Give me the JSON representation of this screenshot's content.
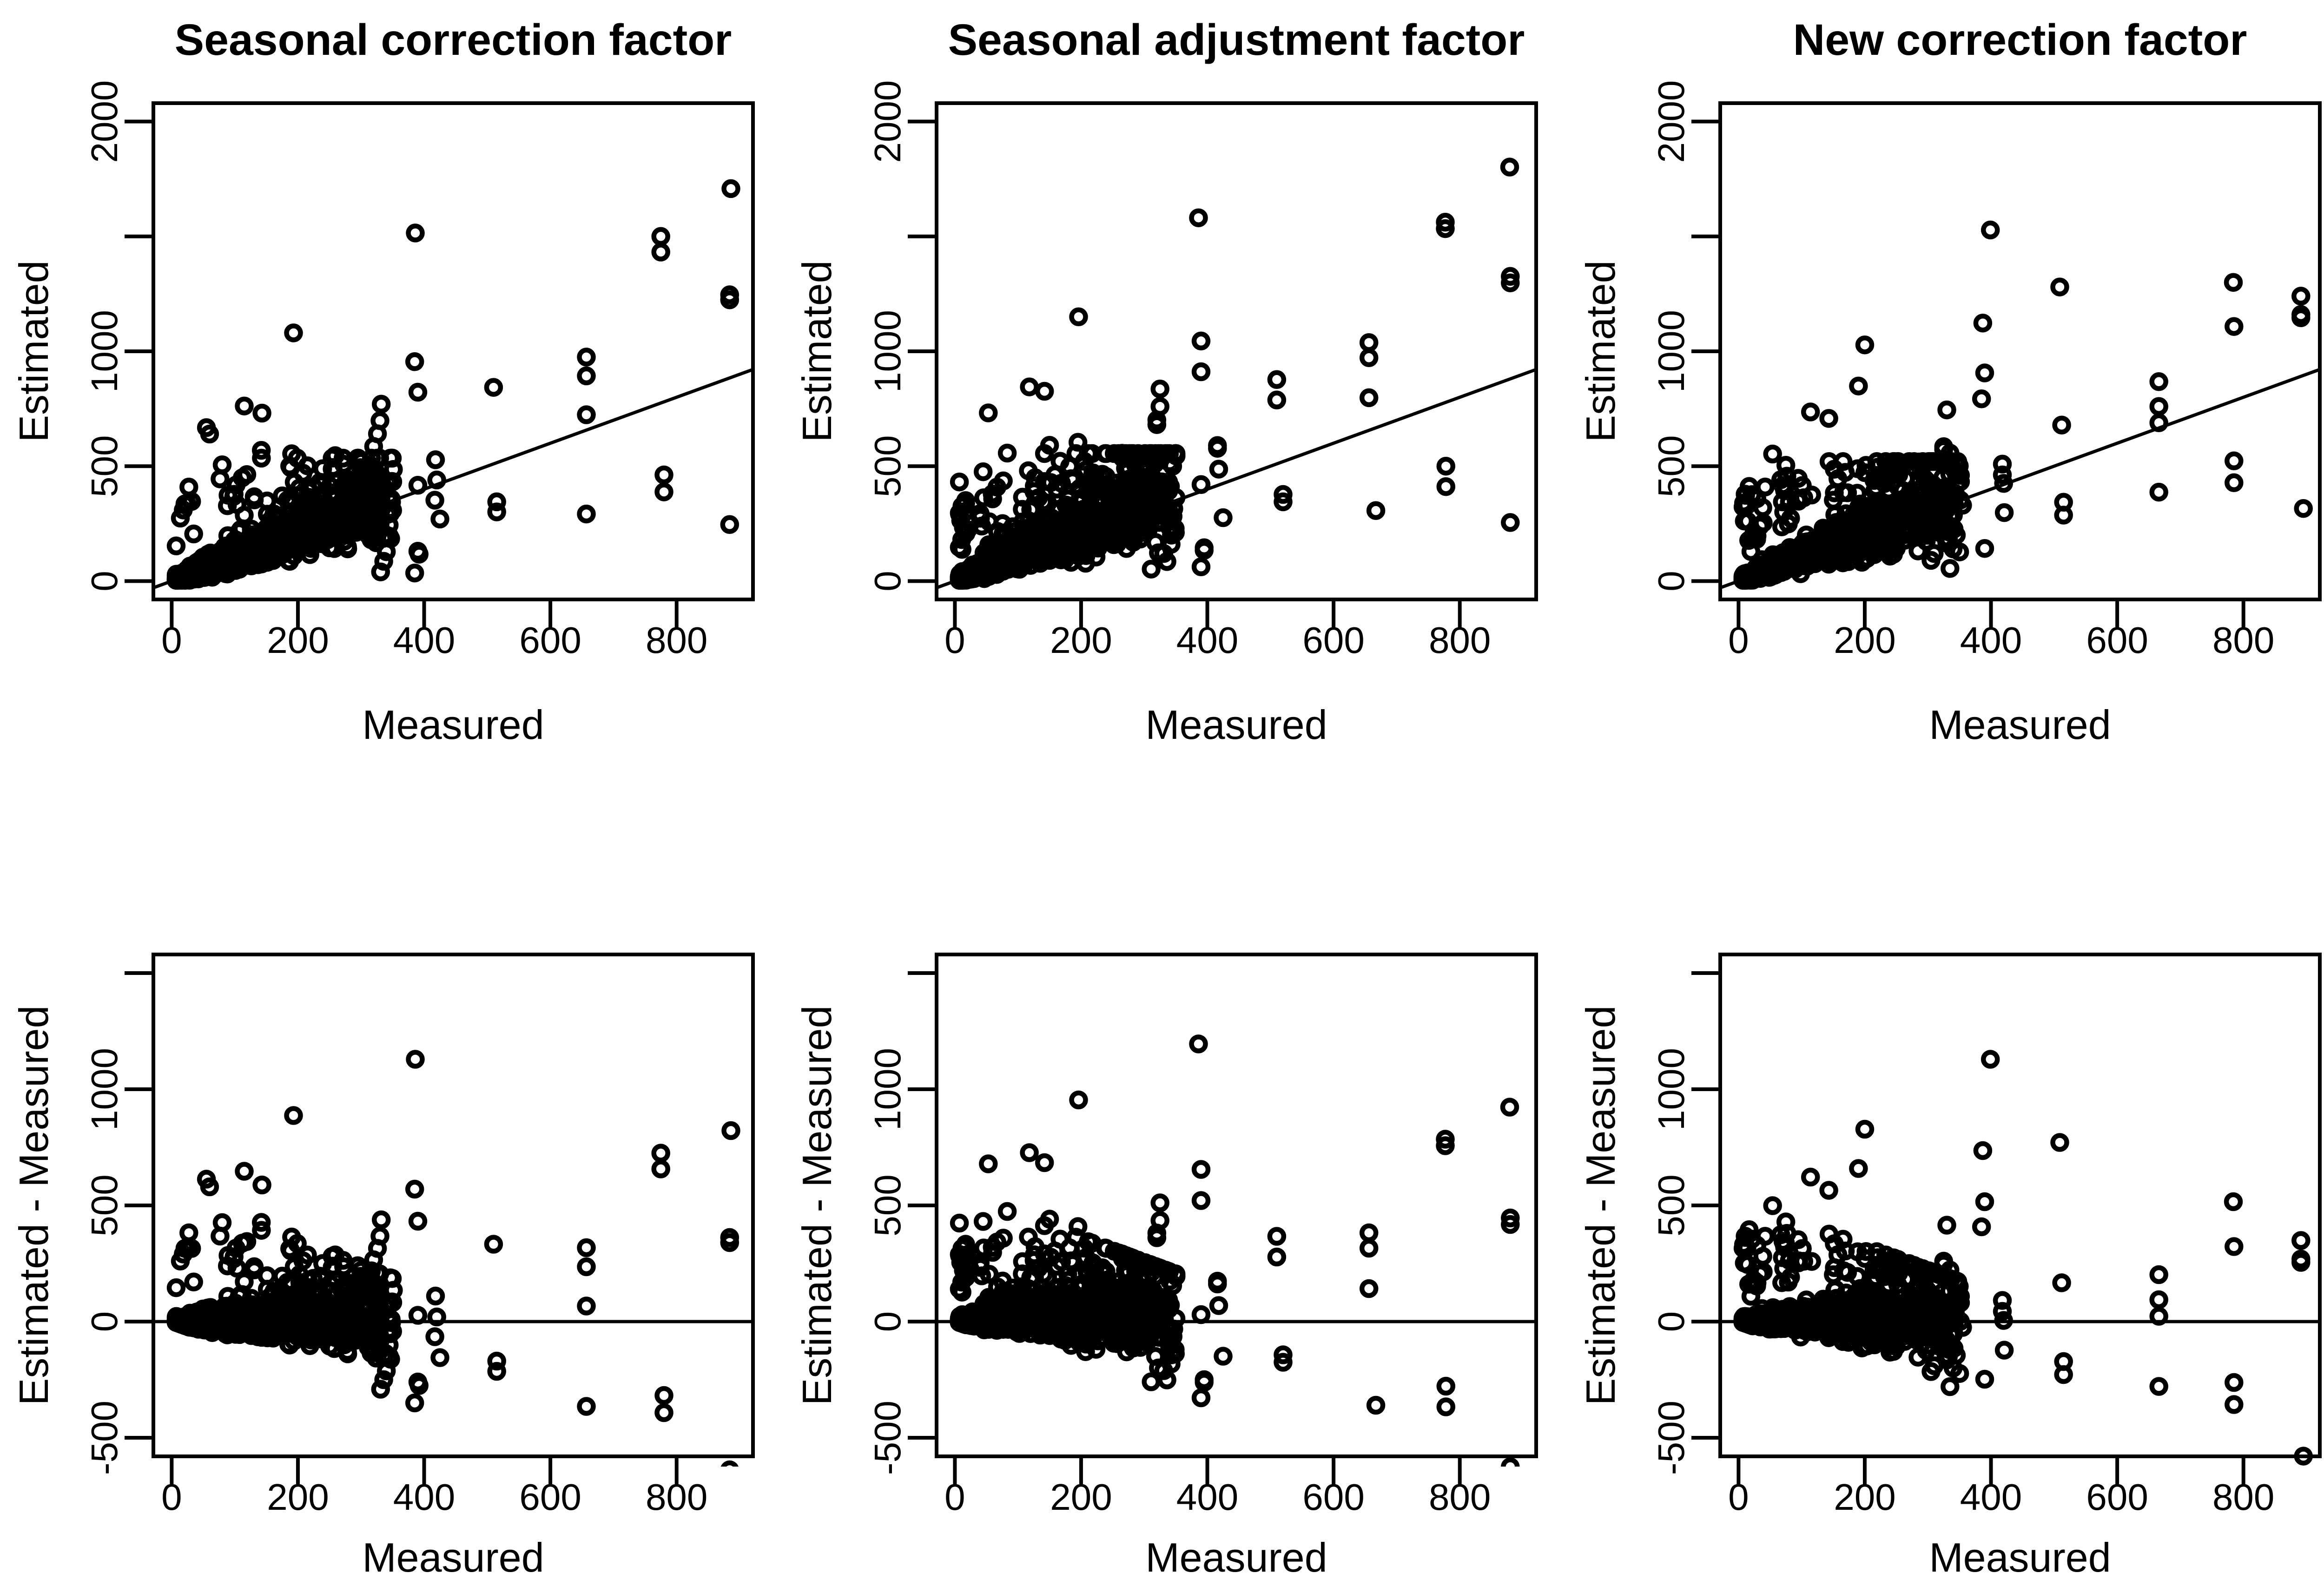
{
  "figure": {
    "background": "#ffffff",
    "ink_color": "#000000",
    "description": "2x3 grid of base-R style scatter plots comparing three correction methods"
  },
  "chart_data": {
    "type": "scatter",
    "grid": {
      "rows": 2,
      "cols": 3
    },
    "point_style": {
      "shape": "open-circle",
      "color": "#000000"
    },
    "x_axis": {
      "label": "Measured",
      "ticks": [
        0,
        200,
        400,
        600,
        800
      ],
      "tick_labels": [
        "0",
        "200",
        "400",
        "600",
        "800"
      ],
      "range_padded": [
        -29,
        921
      ]
    },
    "row_axes": [
      {
        "ylabel": "Estimated",
        "ticks": [
          0,
          500,
          1000,
          1500,
          2000
        ],
        "tick_labels": [
          "0",
          "500",
          "1000",
          "",
          "2000"
        ],
        "range_padded": [
          -80,
          2080
        ],
        "ref_line": "identity (y = x)"
      },
      {
        "ylabel": "Estimated - Measured",
        "ticks": [
          -500,
          0,
          500,
          1000,
          1500
        ],
        "tick_labels": [
          "-500",
          "0",
          "500",
          "1000",
          ""
        ],
        "range_padded": [
          -580,
          1580
        ],
        "ref_line": "horizontal at 0"
      }
    ],
    "note": "Bottom row shows (estimated - measured) for the same points as the top row of each column. Dense cloud values are estimated from the figure via the cluster_model; isolated points are listed explicitly.",
    "columns": [
      {
        "title": "Seasonal correction factor",
        "outliers_measured_estimated": [
          [
            886,
            1708
          ],
          [
            775,
            1500
          ],
          [
            775,
            1432
          ],
          [
            884,
            1246
          ],
          [
            884,
            1224
          ],
          [
            386,
            1515
          ],
          [
            193,
            1080
          ],
          [
            657,
            975
          ],
          [
            657,
            893
          ],
          [
            657,
            724
          ],
          [
            510,
            843
          ],
          [
            385,
            955
          ],
          [
            390,
            822
          ],
          [
            115,
            762
          ],
          [
            143,
            731
          ],
          [
            55,
            668
          ],
          [
            60,
            640
          ],
          [
            332,
            770
          ],
          [
            330,
            698
          ],
          [
            326,
            641
          ],
          [
            320,
            586
          ],
          [
            142,
            569
          ],
          [
            190,
            554
          ],
          [
            80,
            506
          ],
          [
            259,
            546
          ],
          [
            418,
            528
          ],
          [
            420,
            440
          ],
          [
            390,
            417
          ],
          [
            425,
            270
          ],
          [
            780,
            462
          ],
          [
            780,
            388
          ],
          [
            884,
            246
          ],
          [
            657,
            292
          ],
          [
            515,
            345
          ],
          [
            515,
            301
          ],
          [
            390,
            130
          ],
          [
            392,
            117
          ],
          [
            385,
            35
          ],
          [
            331,
            40
          ],
          [
            336,
            86
          ],
          [
            417,
            352
          ],
          [
            300,
            520
          ],
          [
            305,
            480
          ],
          [
            345,
            195
          ]
        ],
        "cluster_model": {
          "n": 900,
          "seed": 101,
          "m_min": 7,
          "m_span": 345,
          "m_exp": 1.8,
          "log_mu": 0.04,
          "log_sigma": 0.34,
          "bump_prob": 0.045,
          "bump_max": 280,
          "e_cap": 535
        }
      },
      {
        "title": "Seasonal adjustment factor",
        "outliers_measured_estimated": [
          [
            879,
            1802
          ],
          [
            386,
            1581
          ],
          [
            777,
            1562
          ],
          [
            777,
            1534
          ],
          [
            880,
            1326
          ],
          [
            880,
            1298
          ],
          [
            196,
            1150
          ],
          [
            656,
            1038
          ],
          [
            656,
            972
          ],
          [
            656,
            798
          ],
          [
            390,
            1045
          ],
          [
            390,
            911
          ],
          [
            510,
            877
          ],
          [
            510,
            788
          ],
          [
            118,
            845
          ],
          [
            142,
            826
          ],
          [
            53,
            732
          ],
          [
            325,
            836
          ],
          [
            325,
            760
          ],
          [
            320,
            701
          ],
          [
            320,
            681
          ],
          [
            195,
            604
          ],
          [
            150,
            591
          ],
          [
            83,
            557
          ],
          [
            265,
            556
          ],
          [
            205,
            521
          ],
          [
            416,
            590
          ],
          [
            416,
            578
          ],
          [
            418,
            487
          ],
          [
            390,
            420
          ],
          [
            520,
            377
          ],
          [
            520,
            345
          ],
          [
            778,
            500
          ],
          [
            778,
            411
          ],
          [
            667,
            307
          ],
          [
            880,
            255
          ],
          [
            425,
            276
          ],
          [
            395,
            145
          ],
          [
            395,
            134
          ],
          [
            390,
            62
          ],
          [
            331,
            120
          ],
          [
            336,
            85
          ],
          [
            311,
            52
          ],
          [
            345,
            500
          ],
          [
            300,
            545
          ]
        ],
        "cluster_model": {
          "n": 950,
          "seed": 202,
          "m_min": 7,
          "m_span": 345,
          "m_exp": 1.8,
          "log_mu": 0.11,
          "log_sigma": 0.38,
          "bump_prob": 0.06,
          "bump_max": 300,
          "e_cap": 555
        }
      },
      {
        "title": "New correction factor",
        "outliers_measured_estimated": [
          [
            399,
            1528
          ],
          [
            784,
            1300
          ],
          [
            509,
            1280
          ],
          [
            891,
            1240
          ],
          [
            891,
            1160
          ],
          [
            891,
            1146
          ],
          [
            785,
            1108
          ],
          [
            387,
            1123
          ],
          [
            200,
            1028
          ],
          [
            390,
            906
          ],
          [
            190,
            849
          ],
          [
            385,
            793
          ],
          [
            666,
            868
          ],
          [
            666,
            760
          ],
          [
            666,
            689
          ],
          [
            512,
            679
          ],
          [
            114,
            736
          ],
          [
            143,
            708
          ],
          [
            330,
            745
          ],
          [
            54,
            553
          ],
          [
            75,
            504
          ],
          [
            325,
            585
          ],
          [
            325,
            572
          ],
          [
            335,
            557
          ],
          [
            418,
            509
          ],
          [
            418,
            462
          ],
          [
            420,
            425
          ],
          [
            785,
            523
          ],
          [
            785,
            428
          ],
          [
            895,
            316
          ],
          [
            666,
            387
          ],
          [
            515,
            343
          ],
          [
            515,
            287
          ],
          [
            390,
            142
          ],
          [
            335,
            55
          ],
          [
            421,
            298
          ],
          [
            340,
            230
          ],
          [
            345,
            200
          ],
          [
            330,
            165
          ],
          [
            340,
            140
          ],
          [
            310,
            120
          ],
          [
            305,
            90
          ],
          [
            300,
            415
          ],
          [
            310,
            360
          ],
          [
            355,
            330
          ]
        ],
        "cluster_model": {
          "n": 920,
          "seed": 303,
          "m_min": 7,
          "m_span": 345,
          "m_exp": 1.8,
          "log_mu": 0.05,
          "log_sigma": 0.33,
          "bump_prob": 0.07,
          "bump_max": 280,
          "e_cap": 520
        }
      }
    ]
  }
}
